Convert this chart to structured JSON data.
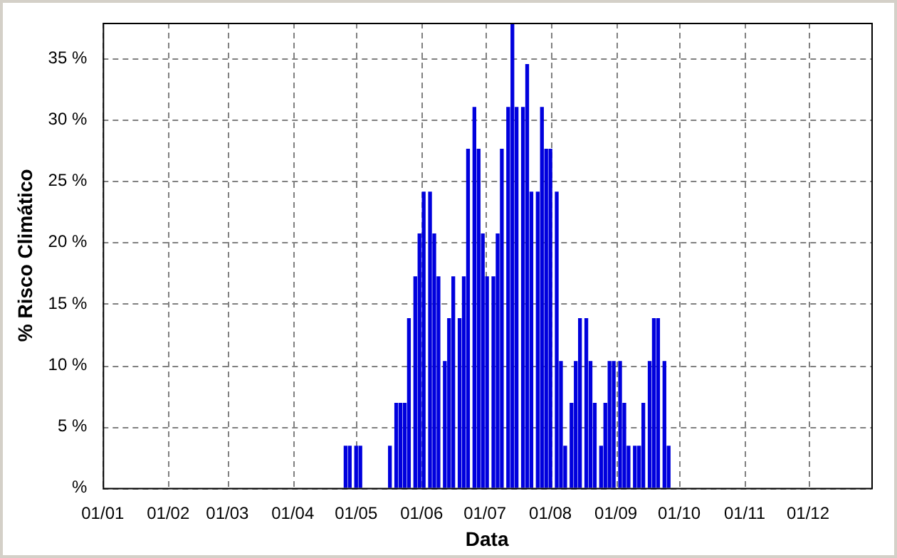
{
  "chart_data": {
    "type": "bar",
    "xlabel": "Data",
    "ylabel": "% Risco Climático",
    "x": [
      "--04-26",
      "--04-28",
      "--05-01",
      "--05-03",
      "--05-17",
      "--05-20",
      "--05-22",
      "--05-24",
      "--05-26",
      "--05-29",
      "--05-31",
      "--06-02",
      "--06-05",
      "--06-07",
      "--06-09",
      "--06-12",
      "--06-14",
      "--06-16",
      "--06-19",
      "--06-21",
      "--06-23",
      "--06-26",
      "--06-28",
      "--06-30",
      "--07-02",
      "--07-05",
      "--07-07",
      "--07-09",
      "--07-12",
      "--07-14",
      "--07-16",
      "--07-19",
      "--07-21",
      "--07-23",
      "--07-26",
      "--07-28",
      "--07-30",
      "--08-01",
      "--08-04",
      "--08-06",
      "--08-08",
      "--08-11",
      "--08-13",
      "--08-15",
      "--08-18",
      "--08-20",
      "--08-22",
      "--08-25",
      "--08-27",
      "--08-29",
      "--08-31",
      "--09-03",
      "--09-05",
      "--09-07",
      "--09-10",
      "--09-12",
      "--09-14",
      "--09-17",
      "--09-19",
      "--09-21",
      "--09-24",
      "--09-26"
    ],
    "values": [
      3.4,
      3.4,
      3.4,
      3.4,
      3.4,
      6.9,
      6.9,
      6.9,
      13.8,
      17.2,
      20.7,
      24.1,
      24.1,
      20.7,
      17.2,
      10.3,
      13.8,
      17.2,
      13.8,
      17.2,
      27.6,
      31.0,
      27.6,
      20.7,
      17.2,
      17.2,
      20.7,
      27.6,
      31.0,
      37.9,
      31.0,
      31.0,
      34.5,
      24.1,
      24.1,
      31.0,
      27.6,
      27.6,
      24.1,
      10.3,
      3.4,
      6.9,
      10.3,
      13.8,
      13.8,
      10.3,
      6.9,
      3.4,
      6.9,
      10.3,
      10.3,
      10.3,
      6.9,
      3.4,
      3.4,
      3.4,
      6.9,
      10.3,
      13.8,
      13.8,
      10.3,
      3.4
    ],
    "color": "#0000dd",
    "xlim": [
      "--01-01",
      "--12-31"
    ],
    "xticks": [
      {
        "value": "--01-01",
        "label": "01/01"
      },
      {
        "value": "--02-01",
        "label": "01/02"
      },
      {
        "value": "--03-01",
        "label": "01/03"
      },
      {
        "value": "--04-01",
        "label": "01/04"
      },
      {
        "value": "--05-01",
        "label": "01/05"
      },
      {
        "value": "--06-01",
        "label": "01/06"
      },
      {
        "value": "--07-01",
        "label": "01/07"
      },
      {
        "value": "--08-01",
        "label": "01/08"
      },
      {
        "value": "--09-01",
        "label": "01/09"
      },
      {
        "value": "--10-01",
        "label": "01/10"
      },
      {
        "value": "--11-01",
        "label": "01/11"
      },
      {
        "value": "--12-01",
        "label": "01/12"
      }
    ],
    "ylim": [
      0,
      37.9
    ],
    "yticks": [
      {
        "value": 0,
        "label": "%"
      },
      {
        "value": 5,
        "label": "5 %"
      },
      {
        "value": 10,
        "label": "10 %"
      },
      {
        "value": 15,
        "label": "15 %"
      },
      {
        "value": 20,
        "label": "20 %"
      },
      {
        "value": 25,
        "label": "25 %"
      },
      {
        "value": 30,
        "label": "30 %"
      },
      {
        "value": 35,
        "label": "35 %"
      }
    ],
    "grid": true
  }
}
